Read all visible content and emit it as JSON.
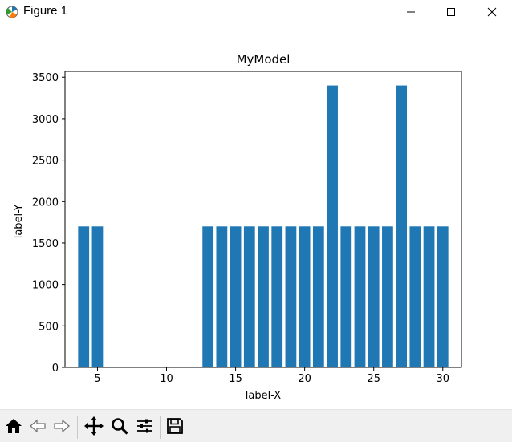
{
  "window": {
    "title": "Figure 1",
    "icons": [
      "figure-app-icon",
      "minimize-icon",
      "maximize-icon",
      "close-icon"
    ]
  },
  "toolbar": {
    "buttons": [
      "home-icon",
      "back-icon",
      "forward-icon",
      "pan-icon",
      "zoom-icon",
      "configure-subplots-icon",
      "save-icon"
    ]
  },
  "chart_data": {
    "type": "bar",
    "title": "MyModel",
    "xlabel": "label-X",
    "ylabel": "label-Y",
    "bar_color": "#1f77b4",
    "x": [
      4,
      5,
      13,
      14,
      15,
      16,
      17,
      18,
      19,
      20,
      21,
      22,
      23,
      24,
      25,
      26,
      27,
      28,
      29,
      30
    ],
    "values": [
      1700,
      1700,
      1700,
      1700,
      1700,
      1700,
      1700,
      1700,
      1700,
      1700,
      1700,
      3400,
      1700,
      1700,
      1700,
      1700,
      3400,
      1700,
      1700,
      1700
    ],
    "xlim": [
      2.65,
      31.35
    ],
    "ylim": [
      0,
      3570
    ],
    "xticks": [
      5,
      10,
      15,
      20,
      25,
      30
    ],
    "yticks": [
      0,
      500,
      1000,
      1500,
      2000,
      2500,
      3000,
      3500
    ],
    "grid": false,
    "legend": false
  }
}
